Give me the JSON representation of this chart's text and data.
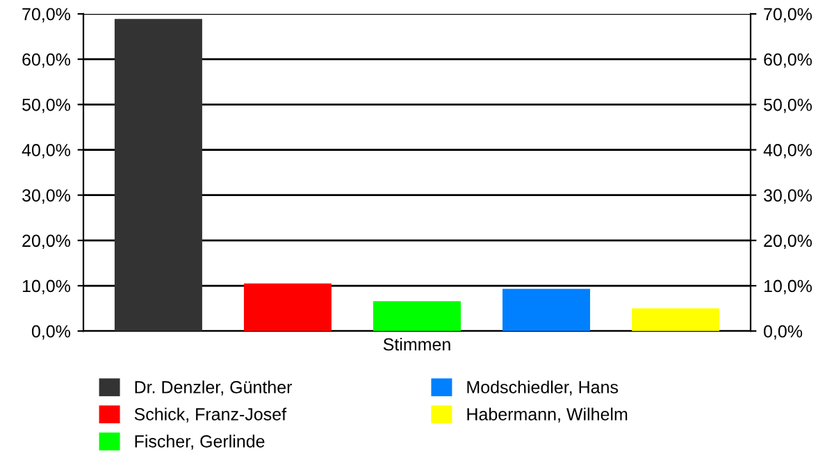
{
  "chart_data": {
    "type": "bar",
    "categories": [
      "Stimmen"
    ],
    "series": [
      {
        "name": "Dr. Denzler, Günther",
        "color": "#333333",
        "values": [
          68.9
        ]
      },
      {
        "name": "Schick, Franz-Josef",
        "color": "#ff0000",
        "values": [
          10.5
        ]
      },
      {
        "name": "Fischer, Gerlinde",
        "color": "#00ff00",
        "values": [
          6.6
        ]
      },
      {
        "name": "Modschiedler, Hans",
        "color": "#0080ff",
        "values": [
          9.3
        ]
      },
      {
        "name": "Habermann, Wilhelm",
        "color": "#ffff00",
        "values": [
          5.0
        ]
      }
    ],
    "ylim": [
      0,
      70
    ],
    "yticks": [
      {
        "value": 0,
        "label": "0,0%"
      },
      {
        "value": 10,
        "label": "10,0%"
      },
      {
        "value": 20,
        "label": "20,0%"
      },
      {
        "value": 30,
        "label": "30,0%"
      },
      {
        "value": 40,
        "label": "40,0%"
      },
      {
        "value": 50,
        "label": "50,0%"
      },
      {
        "value": 60,
        "label": "60,0%"
      },
      {
        "value": 70,
        "label": "70,0%"
      }
    ],
    "grid": "y",
    "legend": "bottom"
  }
}
